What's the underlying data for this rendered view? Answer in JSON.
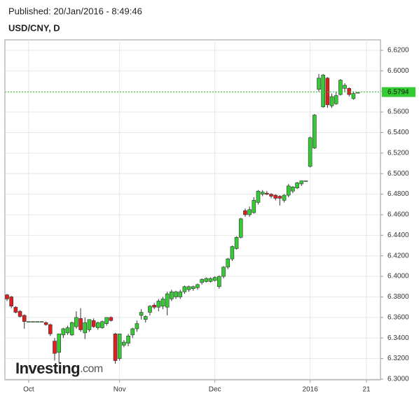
{
  "chart_data": {
    "type": "candlestick",
    "published": "Published: 20/Jan/2016 - 8:49:46",
    "title": "USD/CNY, D",
    "logo_main": "Investing",
    "logo_suffix": ".com",
    "categories": [
      null,
      null,
      null,
      null,
      null,
      "Oct",
      null,
      null,
      null,
      null,
      null,
      null,
      null,
      null,
      null,
      null,
      null,
      null,
      null,
      null,
      null,
      null,
      null,
      null,
      null,
      null,
      "Nov",
      null,
      null,
      null,
      null,
      null,
      null,
      null,
      null,
      null,
      null,
      null,
      null,
      null,
      null,
      null,
      null,
      null,
      null,
      null,
      null,
      null,
      "Dec",
      null,
      null,
      null,
      null,
      null,
      null,
      null,
      null,
      null,
      null,
      null,
      null,
      null,
      null,
      null,
      null,
      null,
      null,
      null,
      null,
      null,
      "2016",
      null,
      null,
      null,
      null,
      null,
      null,
      null,
      null,
      null,
      null,
      null,
      null,
      "21"
    ],
    "open": [
      6.382,
      6.38,
      6.37,
      6.366,
      6.362,
      6.356,
      6.356,
      6.356,
      6.356,
      6.355,
      6.353,
      6.337,
      6.326,
      6.343,
      6.345,
      6.343,
      6.351,
      6.359,
      6.345,
      6.348,
      6.357,
      6.35,
      6.35,
      6.354,
      6.36,
      6.344,
      6.32,
      6.333,
      6.335,
      6.343,
      6.349,
      6.362,
      6.358,
      6.365,
      6.372,
      6.37,
      6.371,
      6.37,
      6.378,
      6.38,
      6.38,
      6.385,
      6.387,
      6.388,
      6.389,
      6.394,
      6.395,
      6.395,
      6.396,
      6.39,
      6.4,
      6.409,
      6.417,
      6.427,
      6.438,
      6.464,
      6.46,
      6.462,
      6.472,
      6.48,
      6.481,
      6.48,
      6.479,
      6.478,
      6.474,
      6.479,
      6.483,
      6.486,
      6.49,
      6.493,
      6.507,
      6.525,
      6.582,
      6.565,
      6.593,
      6.566,
      6.568,
      6.577,
      6.583,
      6.583,
      6.573,
      6.579,
      null,
      null
    ],
    "high": [
      6.383,
      6.381,
      6.371,
      6.367,
      6.363,
      6.356,
      6.356,
      6.356,
      6.356,
      6.356,
      6.354,
      6.34,
      6.343,
      6.35,
      6.352,
      6.356,
      6.366,
      6.369,
      6.36,
      6.358,
      6.359,
      6.356,
      6.357,
      6.36,
      6.361,
      6.345,
      6.344,
      6.338,
      6.344,
      6.35,
      6.357,
      6.368,
      6.362,
      6.372,
      6.374,
      6.378,
      6.38,
      6.385,
      6.387,
      6.386,
      6.387,
      6.391,
      6.391,
      6.391,
      6.393,
      6.398,
      6.399,
      6.399,
      6.4,
      6.401,
      6.41,
      6.418,
      6.43,
      6.439,
      6.457,
      6.466,
      6.468,
      6.477,
      6.484,
      6.484,
      6.483,
      6.481,
      6.48,
      6.479,
      6.48,
      6.49,
      6.488,
      6.492,
      6.493,
      6.493,
      6.536,
      6.558,
      6.597,
      6.597,
      6.594,
      6.578,
      6.58,
      6.592,
      6.588,
      6.584,
      6.58,
      6.579,
      null,
      null
    ],
    "low": [
      6.376,
      6.369,
      6.364,
      6.36,
      6.349,
      6.356,
      6.356,
      6.356,
      6.356,
      6.352,
      6.342,
      6.318,
      6.316,
      6.34,
      6.343,
      6.342,
      6.349,
      6.346,
      6.339,
      6.346,
      6.35,
      6.348,
      6.349,
      6.352,
      6.356,
      6.315,
      6.318,
      6.331,
      6.332,
      6.34,
      6.346,
      6.358,
      6.355,
      6.362,
      6.368,
      6.366,
      6.368,
      6.362,
      6.376,
      6.378,
      6.378,
      6.383,
      6.385,
      6.386,
      6.387,
      6.392,
      6.394,
      6.394,
      6.395,
      6.388,
      6.398,
      6.407,
      6.415,
      6.426,
      6.437,
      6.458,
      6.458,
      6.461,
      6.47,
      6.478,
      6.479,
      6.476,
      6.474,
      6.469,
      6.472,
      6.477,
      6.481,
      6.485,
      6.488,
      6.493,
      6.506,
      6.524,
      6.58,
      6.564,
      6.564,
      6.564,
      6.567,
      6.576,
      6.58,
      6.575,
      6.572,
      6.579,
      null,
      null
    ],
    "close": [
      6.378,
      6.371,
      6.365,
      6.361,
      6.356,
      6.356,
      6.356,
      6.356,
      6.356,
      6.353,
      6.344,
      6.325,
      6.344,
      6.349,
      6.35,
      6.355,
      6.36,
      6.348,
      6.355,
      6.358,
      6.351,
      6.355,
      6.356,
      6.36,
      6.357,
      6.318,
      6.344,
      6.336,
      6.342,
      6.349,
      6.354,
      6.365,
      6.361,
      6.371,
      6.37,
      6.376,
      6.378,
      6.383,
      6.385,
      6.385,
      6.385,
      6.39,
      6.39,
      6.39,
      6.392,
      6.397,
      6.398,
      6.398,
      6.399,
      6.4,
      6.409,
      6.417,
      6.429,
      6.438,
      6.456,
      6.46,
      6.465,
      6.474,
      6.483,
      6.482,
      6.48,
      6.478,
      6.476,
      6.476,
      6.479,
      6.488,
      6.487,
      6.491,
      6.493,
      6.493,
      6.535,
      6.557,
      6.593,
      6.596,
      6.567,
      6.575,
      6.576,
      6.591,
      6.586,
      6.577,
      6.578,
      6.579,
      null,
      null
    ],
    "up_color": "#33cc33",
    "down_color": "#dd1f1f",
    "current_price": 6.5794,
    "current_price_color": "#33cc33",
    "ylim": [
      6.2993,
      6.6302
    ],
    "yticks": [
      {
        "value": 6.3,
        "label": "6.3000"
      },
      {
        "value": 6.32,
        "label": "6.3200"
      },
      {
        "value": 6.34,
        "label": "6.3400"
      },
      {
        "value": 6.36,
        "label": "6.3600"
      },
      {
        "value": 6.38,
        "label": "6.3800"
      },
      {
        "value": 6.4,
        "label": "6.4000"
      },
      {
        "value": 6.42,
        "label": "6.4200"
      },
      {
        "value": 6.44,
        "label": "6.4400"
      },
      {
        "value": 6.46,
        "label": "6.4600"
      },
      {
        "value": 6.48,
        "label": "6.4800"
      },
      {
        "value": 6.5,
        "label": "6.5000"
      },
      {
        "value": 6.52,
        "label": "6.5200"
      },
      {
        "value": 6.54,
        "label": "6.5400"
      },
      {
        "value": 6.56,
        "label": "6.5600"
      },
      {
        "value": 6.58,
        "label": "6.5800"
      },
      {
        "value": 6.6,
        "label": "6.6000"
      },
      {
        "value": 6.62,
        "label": "6.6200"
      }
    ],
    "grid": true
  }
}
